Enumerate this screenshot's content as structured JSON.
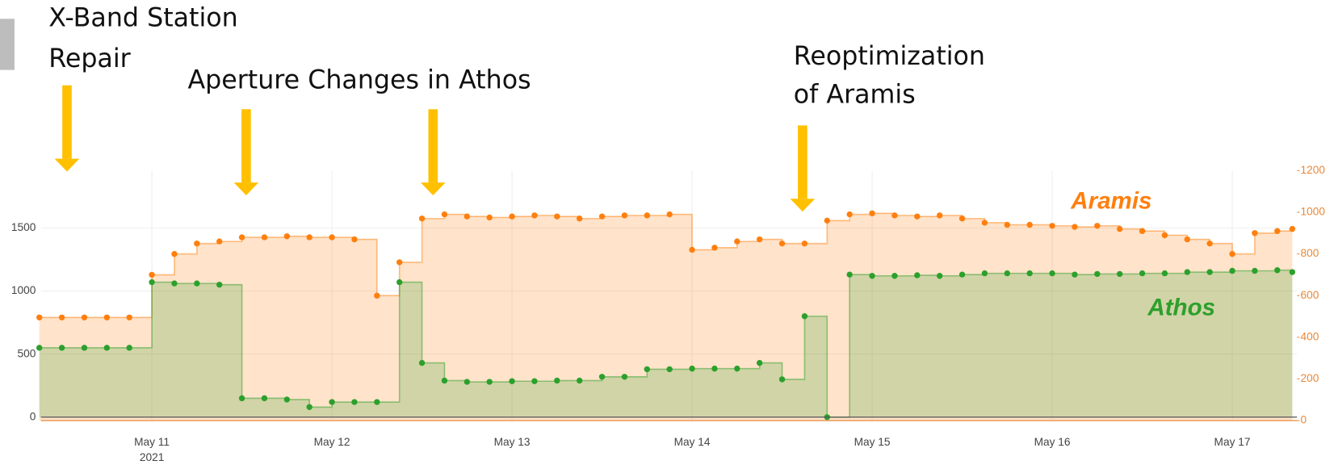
{
  "chart_data": {
    "type": "line",
    "annotations": [
      {
        "lines": [
          "X-Band Station",
          "Repair"
        ]
      },
      {
        "lines": [
          "Aperture Changes in Athos"
        ]
      },
      {
        "lines": [
          "Reoptimization",
          "of Aramis"
        ]
      }
    ],
    "x": [
      "2021-05-10 09:00",
      "2021-05-10 12:00",
      "2021-05-10 15:00",
      "2021-05-10 18:00",
      "2021-05-10 21:00",
      "2021-05-11 00:00",
      "2021-05-11 03:00",
      "2021-05-11 06:00",
      "2021-05-11 09:00",
      "2021-05-11 12:00",
      "2021-05-11 15:00",
      "2021-05-11 18:00",
      "2021-05-11 21:00",
      "2021-05-12 00:00",
      "2021-05-12 03:00",
      "2021-05-12 06:00",
      "2021-05-12 09:00",
      "2021-05-12 12:00",
      "2021-05-12 15:00",
      "2021-05-12 18:00",
      "2021-05-12 21:00",
      "2021-05-13 00:00",
      "2021-05-13 03:00",
      "2021-05-13 06:00",
      "2021-05-13 09:00",
      "2021-05-13 12:00",
      "2021-05-13 15:00",
      "2021-05-13 18:00",
      "2021-05-13 21:00",
      "2021-05-14 00:00",
      "2021-05-14 03:00",
      "2021-05-14 06:00",
      "2021-05-14 09:00",
      "2021-05-14 12:00",
      "2021-05-14 15:00",
      "2021-05-14 18:00",
      "2021-05-14 21:00",
      "2021-05-15 00:00",
      "2021-05-15 03:00",
      "2021-05-15 06:00",
      "2021-05-15 09:00",
      "2021-05-15 12:00",
      "2021-05-15 15:00",
      "2021-05-15 18:00",
      "2021-05-15 21:00",
      "2021-05-16 00:00",
      "2021-05-16 03:00",
      "2021-05-16 06:00",
      "2021-05-16 09:00",
      "2021-05-16 12:00",
      "2021-05-16 15:00",
      "2021-05-16 18:00",
      "2021-05-16 21:00",
      "2021-05-17 00:00",
      "2021-05-17 03:00",
      "2021-05-17 06:00",
      "2021-05-17 08:00"
    ],
    "series": [
      {
        "name": "Aramis",
        "color": "#ff7f0e",
        "axis": "y2",
        "values": [
          495,
          495,
          495,
          495,
          495,
          700,
          800,
          850,
          860,
          880,
          880,
          885,
          880,
          880,
          870,
          600,
          760,
          970,
          990,
          980,
          975,
          980,
          985,
          980,
          970,
          980,
          985,
          985,
          990,
          820,
          830,
          860,
          870,
          850,
          850,
          960,
          990,
          995,
          985,
          980,
          985,
          970,
          950,
          940,
          940,
          935,
          930,
          935,
          920,
          910,
          890,
          870,
          850,
          800,
          900,
          910,
          920
        ]
      },
      {
        "name": "Athos",
        "color": "#2ca02c",
        "values": [
          550,
          550,
          550,
          550,
          550,
          1070,
          1060,
          1060,
          1050,
          150,
          150,
          140,
          80,
          120,
          120,
          120,
          1070,
          430,
          290,
          280,
          280,
          285,
          285,
          290,
          290,
          320,
          320,
          380,
          380,
          385,
          385,
          385,
          430,
          300,
          800,
          0,
          1130,
          1120,
          1120,
          1125,
          1120,
          1130,
          1140,
          1140,
          1140,
          1140,
          1130,
          1135,
          1135,
          1140,
          1140,
          1150,
          1150,
          1160,
          1160,
          1165,
          1150
        ]
      }
    ],
    "xlim": [
      "2021-05-10 09:13",
      "2021-05-17 08:38"
    ],
    "xticks": [
      {
        "value": "2021-05-11 00:00",
        "label": "May 11"
      },
      {
        "value": "2021-05-12 00:00",
        "label": "May 12"
      },
      {
        "value": "2021-05-13 00:00",
        "label": "May 13"
      },
      {
        "value": "2021-05-14 00:00",
        "label": "May 14"
      },
      {
        "value": "2021-05-15 00:00",
        "label": "May 15"
      },
      {
        "value": "2021-05-16 00:00",
        "label": "May 16"
      },
      {
        "value": "2021-05-17 00:00",
        "label": "May 17"
      }
    ],
    "xtick_year": "2021",
    "ylim": [
      -27,
      1954
    ],
    "yticks": [
      0,
      500,
      1000,
      1500
    ],
    "y2lim": [
      0,
      1200
    ],
    "y2ticks": [
      0,
      200,
      400,
      600,
      800,
      1000,
      1200
    ],
    "grid": true
  }
}
